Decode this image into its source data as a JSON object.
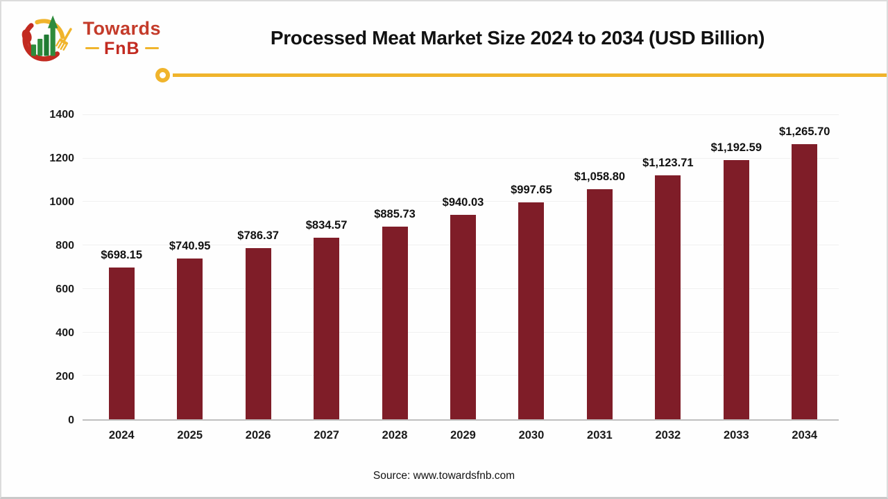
{
  "brand": {
    "line1": "Towards",
    "line2": "FnB"
  },
  "title": "Processed Meat Market Size 2024 to 2034 (USD Billion)",
  "source": "Source: www.towardsfnb.com",
  "colors": {
    "bar": "#7F1D28",
    "accent_gold": "#F0B42C",
    "axis_line": "#BFBFBF",
    "gridline": "#F0F0F0",
    "brand_red": "#C22A20",
    "brand_green": "#2E8B3C"
  },
  "chart_data": {
    "type": "bar",
    "title": "Processed Meat Market Size 2024 to 2034 (USD Billion)",
    "categories": [
      "2024",
      "2025",
      "2026",
      "2027",
      "2028",
      "2029",
      "2030",
      "2031",
      "2032",
      "2033",
      "2034"
    ],
    "values": [
      698.15,
      740.95,
      786.37,
      834.57,
      885.73,
      940.03,
      997.65,
      1058.8,
      1123.71,
      1192.59,
      1265.7
    ],
    "value_labels": [
      "$698.15",
      "$740.95",
      "$786.37",
      "$834.57",
      "$885.73",
      "$940.03",
      "$997.65",
      "$1,058.80",
      "$1,123.71",
      "$1,192.59",
      "$1,265.70"
    ],
    "xlabel": "",
    "ylabel": "",
    "ylim": [
      0,
      1400
    ],
    "yticks": [
      0,
      200,
      400,
      600,
      800,
      1000,
      1200,
      1400
    ],
    "grid": true,
    "legend": false,
    "bar_color": "#7F1D28"
  }
}
